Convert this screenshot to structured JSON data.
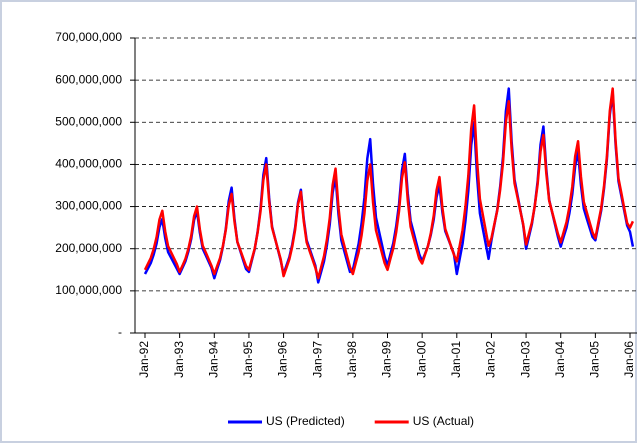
{
  "chart_data": {
    "type": "line",
    "categories": [
      "Jan-92",
      null,
      null,
      null,
      null,
      null,
      null,
      null,
      null,
      null,
      null,
      null,
      "Jan-93",
      null,
      null,
      null,
      null,
      null,
      null,
      null,
      null,
      null,
      null,
      null,
      "Jan-94",
      null,
      null,
      null,
      null,
      null,
      null,
      null,
      null,
      null,
      null,
      null,
      "Jan-95",
      null,
      null,
      null,
      null,
      null,
      null,
      null,
      null,
      null,
      null,
      null,
      "Jan-96",
      null,
      null,
      null,
      null,
      null,
      null,
      null,
      null,
      null,
      null,
      null,
      "Jan-97",
      null,
      null,
      null,
      null,
      null,
      null,
      null,
      null,
      null,
      null,
      null,
      "Jan-98",
      null,
      null,
      null,
      null,
      null,
      null,
      null,
      null,
      null,
      null,
      null,
      "Jan-99",
      null,
      null,
      null,
      null,
      null,
      null,
      null,
      null,
      null,
      null,
      null,
      "Jan-00",
      null,
      null,
      null,
      null,
      null,
      null,
      null,
      null,
      null,
      null,
      null,
      "Jan-01",
      null,
      null,
      null,
      null,
      null,
      null,
      null,
      null,
      null,
      null,
      null,
      "Jan-02",
      null,
      null,
      null,
      null,
      null,
      null,
      null,
      null,
      null,
      null,
      null,
      "Jan-03",
      null,
      null,
      null,
      null,
      null,
      null,
      null,
      null,
      null,
      null,
      null,
      "Jan-04",
      null,
      null,
      null,
      null,
      null,
      null,
      null,
      null,
      null,
      null,
      null,
      "Jan-05",
      null,
      null,
      null,
      null,
      null,
      null,
      null,
      null,
      null,
      null,
      null,
      "Jan-06",
      null
    ],
    "series": [
      {
        "name": "US (Predicted)",
        "color": "#0000ff",
        "values": [
          140000000,
          153000000,
          166000000,
          186000000,
          212000000,
          251000000,
          270000000,
          225000000,
          192000000,
          179000000,
          166000000,
          153000000,
          140000000,
          155000000,
          170000000,
          193000000,
          223000000,
          268000000,
          290000000,
          238000000,
          200000000,
          185000000,
          170000000,
          155000000,
          130000000,
          152000000,
          173000000,
          205000000,
          248000000,
          313000000,
          345000000,
          270000000,
          216000000,
          195000000,
          173000000,
          152000000,
          145000000,
          172000000,
          199000000,
          240000000,
          294000000,
          375000000,
          415000000,
          321000000,
          253000000,
          226000000,
          199000000,
          172000000,
          140000000,
          160000000,
          180000000,
          210000000,
          250000000,
          310000000,
          340000000,
          270000000,
          220000000,
          200000000,
          180000000,
          160000000,
          120000000,
          145000000,
          170000000,
          208000000,
          258000000,
          333000000,
          370000000,
          283000000,
          220000000,
          195000000,
          170000000,
          145000000,
          150000000,
          181000000,
          212000000,
          259000000,
          321000000,
          414000000,
          460000000,
          352000000,
          274000000,
          243000000,
          212000000,
          181000000,
          160000000,
          187000000,
          213000000,
          253000000,
          306000000,
          385000000,
          425000000,
          332000000,
          266000000,
          240000000,
          213000000,
          187000000,
          170000000,
          188000000,
          206000000,
          233000000,
          269000000,
          323000000,
          350000000,
          287000000,
          242000000,
          224000000,
          206000000,
          188000000,
          140000000,
          176000000,
          212000000,
          266000000,
          338000000,
          446000000,
          500000000,
          374000000,
          284000000,
          248000000,
          212000000,
          176000000,
          220000000,
          256000000,
          292000000,
          346000000,
          418000000,
          526000000,
          580000000,
          454000000,
          364000000,
          328000000,
          292000000,
          256000000,
          200000000,
          229000000,
          258000000,
          302000000,
          360000000,
          447000000,
          490000000,
          389000000,
          316000000,
          287000000,
          258000000,
          229000000,
          205000000,
          228000000,
          250000000,
          284000000,
          329000000,
          396000000,
          430000000,
          351000000,
          295000000,
          272000000,
          250000000,
          228000000,
          220000000,
          255000000,
          290000000,
          343000000,
          413000000,
          518000000,
          570000000,
          448000000,
          360000000,
          325000000,
          290000000,
          255000000,
          240000000,
          205000000
        ]
      },
      {
        "name": "US (Actual)",
        "color": "#ff0000",
        "values": [
          150000000,
          164000000,
          178000000,
          199000000,
          227000000,
          269000000,
          290000000,
          241000000,
          206000000,
          192000000,
          178000000,
          164000000,
          145000000,
          160000000,
          176000000,
          199000000,
          230000000,
          277000000,
          300000000,
          246000000,
          207000000,
          192000000,
          176000000,
          160000000,
          140000000,
          159000000,
          178000000,
          207000000,
          245000000,
          302000000,
          330000000,
          264000000,
          216000000,
          197000000,
          178000000,
          159000000,
          150000000,
          175000000,
          200000000,
          238000000,
          288000000,
          363000000,
          400000000,
          313000000,
          250000000,
          225000000,
          200000000,
          175000000,
          135000000,
          155000000,
          175000000,
          205000000,
          245000000,
          305000000,
          335000000,
          265000000,
          215000000,
          195000000,
          175000000,
          155000000,
          130000000,
          156000000,
          182000000,
          221000000,
          273000000,
          351000000,
          390000000,
          299000000,
          234000000,
          208000000,
          182000000,
          156000000,
          140000000,
          166000000,
          192000000,
          231000000,
          283000000,
          361000000,
          400000000,
          309000000,
          244000000,
          218000000,
          192000000,
          166000000,
          150000000,
          176000000,
          201000000,
          239000000,
          290000000,
          367000000,
          405000000,
          316000000,
          252000000,
          226000000,
          201000000,
          176000000,
          165000000,
          186000000,
          206000000,
          237000000,
          278000000,
          339000000,
          370000000,
          298000000,
          247000000,
          227000000,
          206000000,
          186000000,
          170000000,
          207000000,
          244000000,
          300000000,
          374000000,
          485000000,
          540000000,
          411000000,
          318000000,
          281000000,
          244000000,
          207000000,
          225000000,
          258000000,
          290000000,
          339000000,
          404000000,
          501000000,
          550000000,
          436000000,
          355000000,
          323000000,
          290000000,
          258000000,
          210000000,
          236000000,
          262000000,
          301000000,
          353000000,
          431000000,
          470000000,
          379000000,
          314000000,
          288000000,
          262000000,
          236000000,
          215000000,
          239000000,
          263000000,
          299000000,
          347000000,
          419000000,
          455000000,
          371000000,
          311000000,
          287000000,
          263000000,
          239000000,
          225000000,
          261000000,
          296000000,
          349000000,
          420000000,
          527000000,
          580000000,
          456000000,
          367000000,
          332000000,
          296000000,
          261000000,
          250000000,
          265000000
        ]
      }
    ],
    "ylim": [
      0,
      700000000
    ],
    "yticks": [
      {
        "value": 0,
        "label": "-"
      },
      {
        "value": 100000000,
        "label": "100,000,000"
      },
      {
        "value": 200000000,
        "label": "200,000,000"
      },
      {
        "value": 300000000,
        "label": "300,000,000"
      },
      {
        "value": 400000000,
        "label": "400,000,000"
      },
      {
        "value": 500000000,
        "label": "500,000,000"
      },
      {
        "value": 600000000,
        "label": "600,000,000"
      },
      {
        "value": 700000000,
        "label": "700,000,000"
      }
    ],
    "grid": true,
    "legend": "bottom"
  }
}
